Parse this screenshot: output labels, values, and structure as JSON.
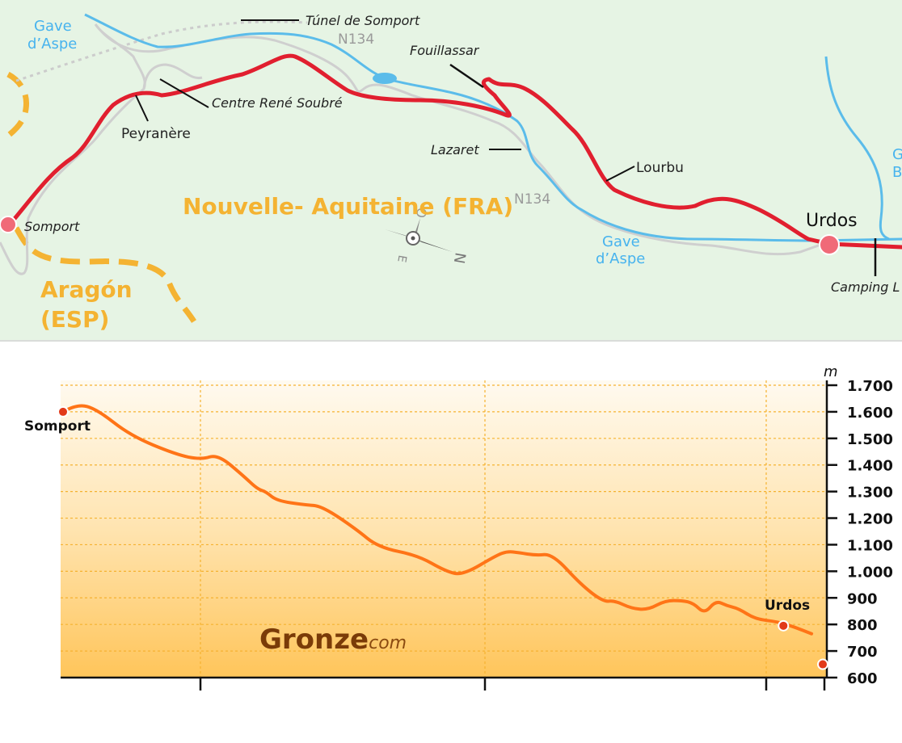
{
  "map": {
    "places": {
      "tunel": "Túnel de Somport",
      "road_n134_top": "N134",
      "fouillassar": "Fouillassar",
      "centre": "Centre René Soubré",
      "peyranere": "Peyranère",
      "lazaret": "Lazaret",
      "lourbu": "Lourbu",
      "somport": "Somport",
      "urdos": "Urdos",
      "camping": "Camping L",
      "road_n134_mid": "N134"
    },
    "rivers": {
      "gave_top_1": "Gave",
      "gave_top_2": "d’Aspe",
      "gave_mid_1": "Gave",
      "gave_mid_2": "d’Aspe",
      "right_edge_1": "G",
      "right_edge_2": "B"
    },
    "regions": {
      "france": "Nouvelle- Aquitaine (FRA)",
      "spain_1": "Aragón",
      "spain_2": "(ESP)"
    },
    "compass": {
      "n": "N",
      "e": "E",
      "o": "O"
    },
    "colors": {
      "route": "#e11f2f",
      "river": "#5bbcea",
      "road": "#cfcfcf",
      "border": "#f4b332"
    }
  },
  "profile": {
    "unit": "m",
    "brand_main": "Gronze",
    "brand_suffix": "com",
    "start_label": "Somport",
    "end_label": "Urdos",
    "chart_data": {
      "type": "line",
      "ylabel": "m",
      "ylim": [
        600,
        1700
      ],
      "yticks": [
        1700,
        1600,
        1500,
        1400,
        1300,
        1200,
        1100,
        1000,
        900,
        800,
        700,
        600
      ],
      "ytick_labels": [
        "1.700",
        "1.600",
        "1.500",
        "1.400",
        "1.300",
        "1.200",
        "1.100",
        "1.000",
        "900",
        "800",
        "700",
        "600"
      ],
      "x_range": [
        0,
        13.5
      ],
      "x": [
        0,
        0.25,
        0.6,
        1.2,
        2.0,
        2.45,
        2.75,
        3.2,
        3.45,
        3.6,
        3.8,
        4.3,
        4.6,
        5.2,
        5.6,
        6.3,
        6.8,
        7.1,
        7.7,
        7.9,
        8.1,
        8.4,
        8.7,
        9.2,
        9.6,
        9.8,
        10.1,
        10.4,
        10.7,
        11.0,
        11.2,
        11.4,
        11.6,
        11.8,
        12.0,
        12.3,
        12.7,
        13.0,
        13.3
      ],
      "series": [
        {
          "values": [
            1600,
            1630,
            1610,
            1510,
            1440,
            1420,
            1440,
            1360,
            1310,
            1300,
            1265,
            1250,
            1245,
            1160,
            1090,
            1060,
            1000,
            985,
            1060,
            1075,
            1070,
            1060,
            1065,
            950,
            885,
            890,
            860,
            855,
            890,
            890,
            880,
            840,
            890,
            870,
            860,
            820,
            810,
            790,
            765
          ],
          "color": "#ff7417"
        }
      ],
      "markers": [
        {
          "x": 0,
          "y": 1600,
          "label": "Somport"
        },
        {
          "x": 12.8,
          "y": 795,
          "label": "Urdos"
        },
        {
          "x": 13.5,
          "y": 650,
          "label": ""
        }
      ],
      "grid": true
    }
  }
}
